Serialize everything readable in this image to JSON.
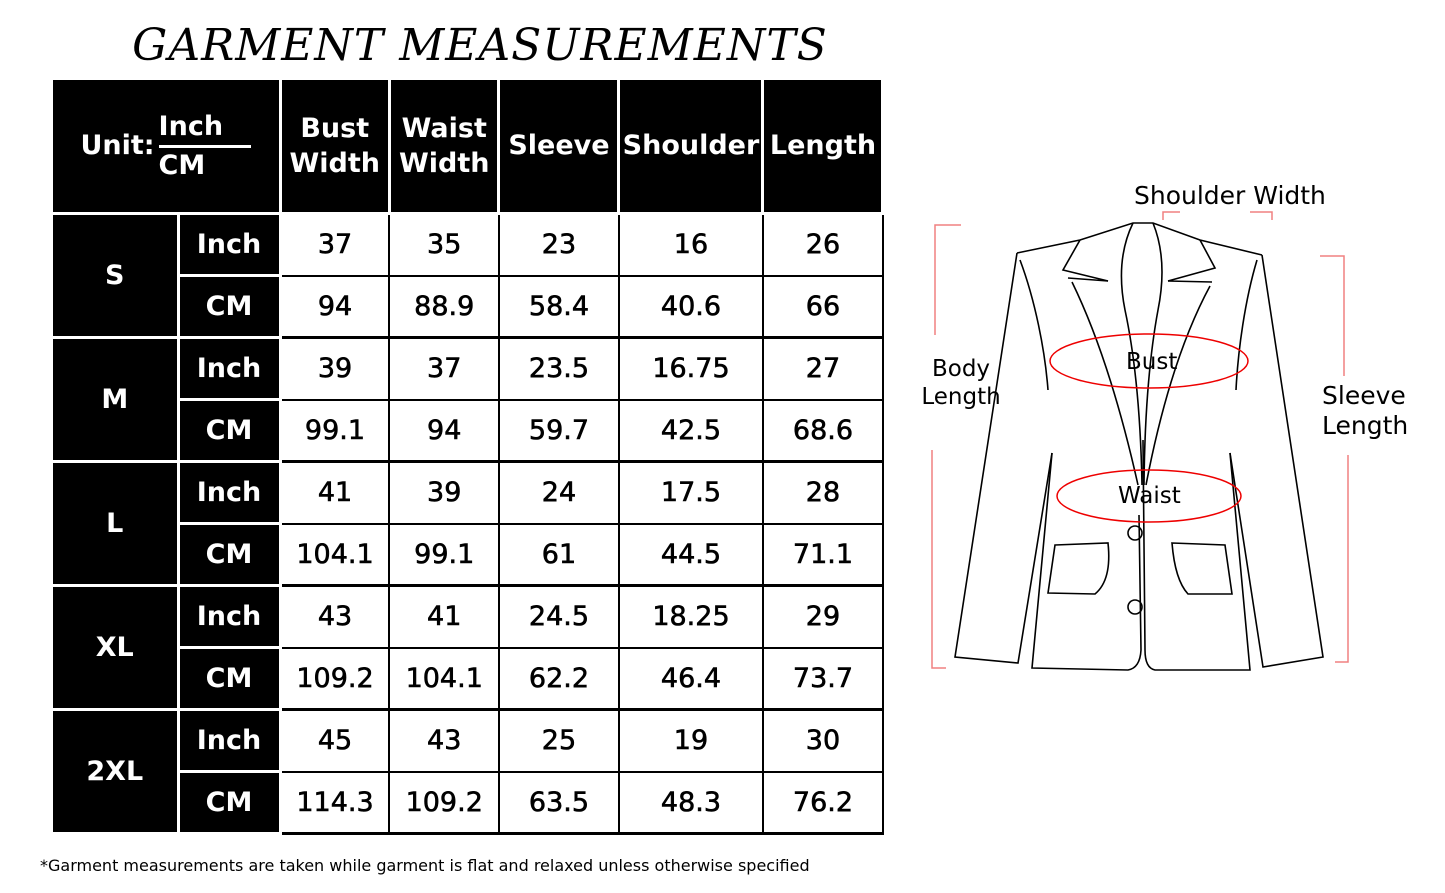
{
  "title": "GARMENT MEASUREMENTS",
  "header": {
    "unit_label": "Unit:",
    "unit_top": "Inch",
    "unit_bottom": "CM",
    "columns": [
      "Bust Width",
      "Waist Width",
      "Sleeve",
      "Shoulder",
      "Length"
    ]
  },
  "rows": [
    {
      "size": "S",
      "inch": {
        "unit": "Inch",
        "values": [
          "37",
          "35",
          "23",
          "16",
          "26"
        ]
      },
      "cm": {
        "unit": "CM",
        "values": [
          "94",
          "88.9",
          "58.4",
          "40.6",
          "66"
        ]
      }
    },
    {
      "size": "M",
      "inch": {
        "unit": "Inch",
        "values": [
          "39",
          "37",
          "23.5",
          "16.75",
          "27"
        ]
      },
      "cm": {
        "unit": "CM",
        "values": [
          "99.1",
          "94",
          "59.7",
          "42.5",
          "68.6"
        ]
      }
    },
    {
      "size": "L",
      "inch": {
        "unit": "Inch",
        "values": [
          "41",
          "39",
          "24",
          "17.5",
          "28"
        ]
      },
      "cm": {
        "unit": "CM",
        "values": [
          "104.1",
          "99.1",
          "61",
          "44.5",
          "71.1"
        ]
      }
    },
    {
      "size": "XL",
      "inch": {
        "unit": "Inch",
        "values": [
          "43",
          "41",
          "24.5",
          "18.25",
          "29"
        ]
      },
      "cm": {
        "unit": "CM",
        "values": [
          "109.2",
          "104.1",
          "62.2",
          "46.4",
          "73.7"
        ]
      }
    },
    {
      "size": "2XL",
      "inch": {
        "unit": "Inch",
        "values": [
          "45",
          "43",
          "25",
          "19",
          "30"
        ]
      },
      "cm": {
        "unit": "CM",
        "values": [
          "114.3",
          "109.2",
          "63.5",
          "48.3",
          "76.2"
        ]
      }
    }
  ],
  "diagram": {
    "shoulder": "Shoulder Width",
    "body": "Body Length",
    "sleeve": "Sleeve Length",
    "bust": "Bust",
    "waist": "Waist",
    "guide_color": "#ff0000"
  },
  "footnote": "*Garment measurements are taken while garment is flat and relaxed unless otherwise specified"
}
